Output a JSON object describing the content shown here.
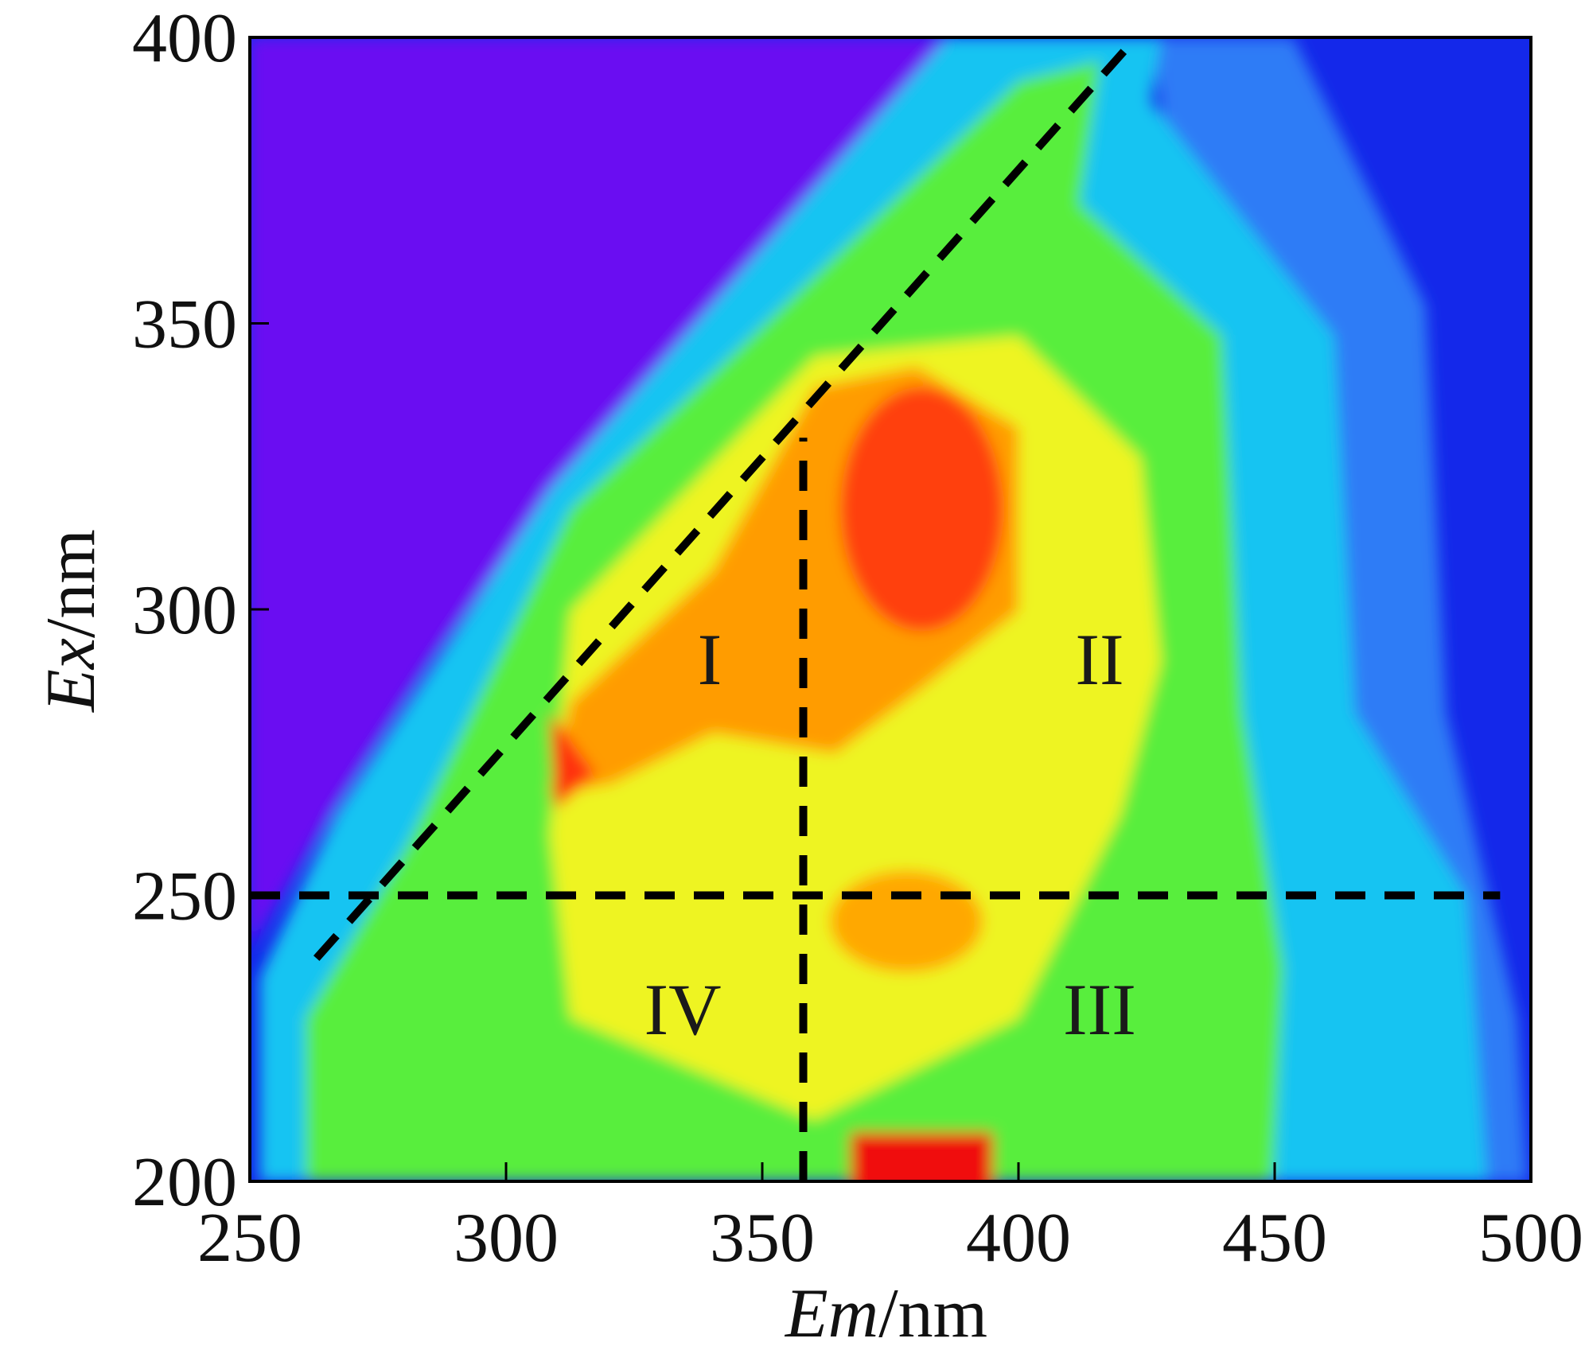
{
  "chart_data": {
    "type": "contour",
    "x_label": "Em/nm",
    "y_label": "Ex/nm",
    "xlim": [
      250,
      500
    ],
    "xticks": [
      250,
      300,
      350,
      400,
      450,
      500
    ],
    "ylim": [
      200,
      400
    ],
    "yticks": [
      200,
      250,
      300,
      350,
      400
    ],
    "annotations": [
      "I",
      "II",
      "III",
      "IV"
    ],
    "lines": [
      {
        "x": [
          250,
          494
        ],
        "y": [
          250,
          250
        ]
      },
      {
        "x": [
          358,
          358
        ],
        "y": [
          200,
          330
        ]
      },
      {
        "x": [
          263,
          422
        ],
        "y": [
          239,
          399
        ]
      }
    ],
    "line_color": "#000000"
  }
}
